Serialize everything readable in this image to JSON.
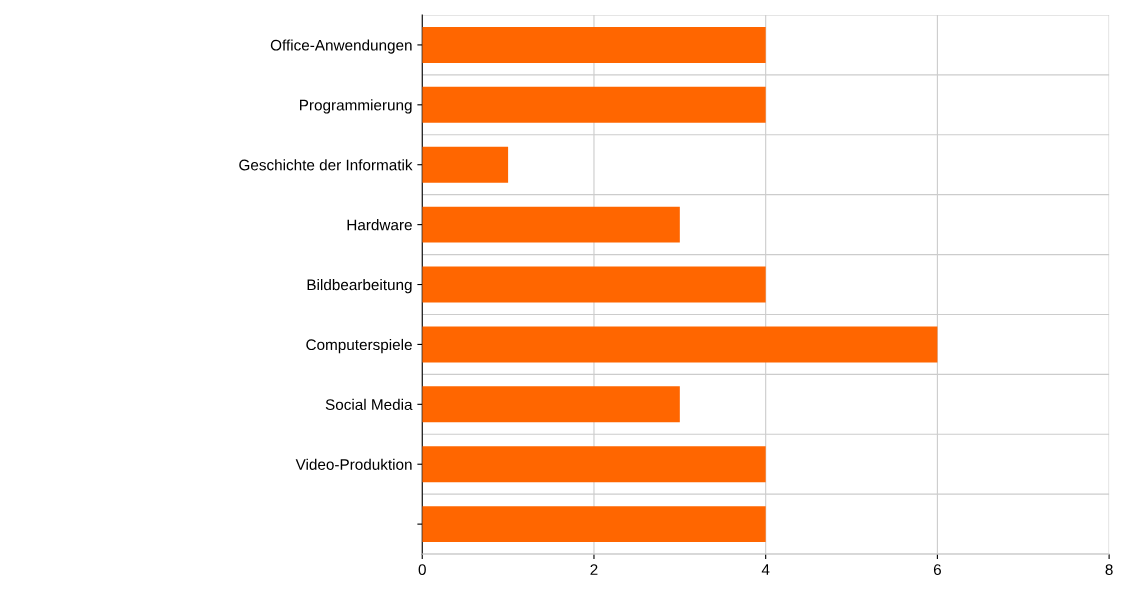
{
  "chart_data": {
    "type": "bar",
    "orientation": "horizontal",
    "categories": [
      "Office-Anwendungen",
      "Programmierung",
      "Geschichte der Informatik",
      "Hardware",
      "Bildbearbeitung",
      "Computerspiele",
      "Social Media",
      "Video-Produktion",
      null
    ],
    "values": [
      4,
      4,
      1,
      3,
      4,
      6,
      3,
      4,
      4
    ],
    "color": "#ff6600",
    "xlim": [
      0,
      8
    ],
    "xticks": [
      0,
      2,
      4,
      6,
      8
    ],
    "grid": true
  }
}
